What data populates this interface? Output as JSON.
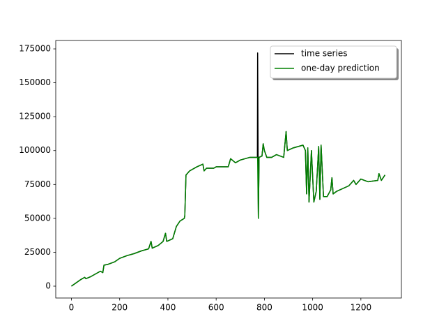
{
  "chart_data": {
    "type": "line",
    "x": [
      0,
      20,
      40,
      55,
      60,
      80,
      100,
      120,
      130,
      135,
      150,
      180,
      200,
      230,
      260,
      290,
      320,
      330,
      335,
      360,
      380,
      390,
      395,
      420,
      435,
      450,
      468,
      470,
      475,
      490,
      520,
      545,
      550,
      560,
      590,
      600,
      650,
      660,
      680,
      700,
      740,
      771,
      772,
      775,
      778,
      790,
      795,
      800,
      810,
      830,
      850,
      880,
      890,
      895,
      920,
      960,
      970,
      975,
      980,
      985,
      995,
      1005,
      1015,
      1025,
      1030,
      1035,
      1045,
      1060,
      1075,
      1080,
      1085,
      1100,
      1150,
      1170,
      1180,
      1200,
      1230,
      1270,
      1275,
      1285,
      1300
    ],
    "series": [
      {
        "name": "time series",
        "color": "#000000",
        "values": [
          0,
          2500,
          5000,
          6500,
          5500,
          7000,
          9000,
          11000,
          10000,
          15500,
          16000,
          18000,
          20500,
          22500,
          24000,
          26000,
          27500,
          33000,
          28000,
          30000,
          33000,
          39000,
          33000,
          35000,
          44000,
          48000,
          50000,
          52000,
          82000,
          85000,
          88000,
          90000,
          85000,
          87000,
          87000,
          88000,
          88000,
          94000,
          91000,
          93000,
          95000,
          95000,
          172000,
          50000,
          95000,
          96000,
          105000,
          100000,
          95000,
          95000,
          97000,
          95000,
          114000,
          100000,
          102000,
          104000,
          100000,
          68000,
          102000,
          62000,
          100000,
          62000,
          70000,
          103000,
          64000,
          104000,
          66000,
          66000,
          71000,
          80000,
          68000,
          70000,
          74000,
          78000,
          75000,
          79000,
          77000,
          78000,
          83000,
          78000,
          82000
        ]
      },
      {
        "name": "one-day prediction",
        "color": "#008000",
        "values": [
          0,
          2500,
          5000,
          6500,
          5500,
          7000,
          9000,
          11000,
          10000,
          15500,
          16000,
          18000,
          20500,
          22500,
          24000,
          26000,
          27500,
          33000,
          28000,
          30000,
          33000,
          39000,
          33000,
          35000,
          44000,
          48000,
          50000,
          52000,
          82000,
          85000,
          88000,
          90000,
          85000,
          87000,
          87000,
          88000,
          88000,
          94000,
          91000,
          93000,
          95000,
          95000,
          95000,
          50000,
          95000,
          96000,
          105000,
          100000,
          95000,
          95000,
          97000,
          95000,
          114000,
          100000,
          102000,
          104000,
          100000,
          68000,
          102000,
          62000,
          100000,
          62000,
          70000,
          103000,
          64000,
          104000,
          66000,
          66000,
          71000,
          80000,
          68000,
          70000,
          74000,
          78000,
          75000,
          79000,
          77000,
          78000,
          83000,
          78000,
          82000
        ]
      }
    ],
    "xlim": [
      -65,
      1368
    ],
    "ylim": [
      -8750,
      181200
    ],
    "xticks": [
      0,
      200,
      400,
      600,
      800,
      1000,
      1200
    ],
    "yticks": [
      0,
      25000,
      50000,
      75000,
      100000,
      125000,
      150000,
      175000
    ],
    "legend": "upper right"
  }
}
